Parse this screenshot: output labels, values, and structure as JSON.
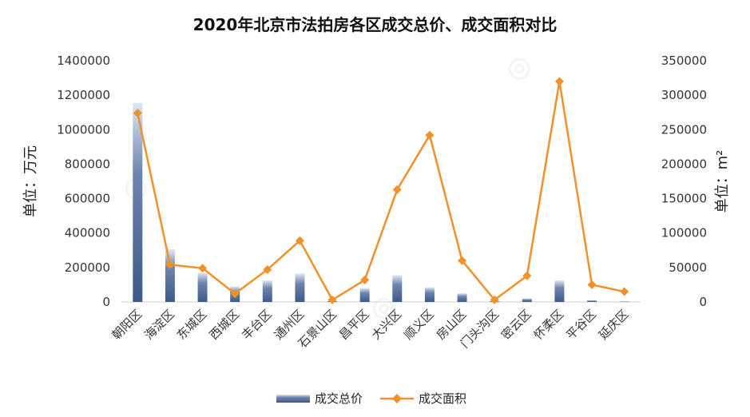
{
  "chart_data": {
    "type": "bar",
    "title": "2020年北京市法拍房各区成交总价、成交面积对比",
    "categories": [
      "朝阳区",
      "海淀区",
      "东城区",
      "西城区",
      "丰台区",
      "通州区",
      "石景山区",
      "昌平区",
      "大兴区",
      "顺义区",
      "房山区",
      "门头沟区",
      "密云区",
      "怀柔区",
      "平谷区",
      "延庆区"
    ],
    "ylabel_left": "单位：万元",
    "ylabel_right": "单位：m²",
    "ylim_left": [
      0,
      1400000
    ],
    "ylim_right": [
      0,
      350000
    ],
    "yticks_left": [
      "0",
      "200000",
      "400000",
      "600000",
      "800000",
      "1000000",
      "1200000",
      "1400000"
    ],
    "yticks_right": [
      "0",
      "50000",
      "100000",
      "150000",
      "200000",
      "250000",
      "300000",
      "350000"
    ],
    "grid": false,
    "legend_position": "bottom",
    "series": [
      {
        "name": "成交总价",
        "type": "bar",
        "axis": "left",
        "color": "#4a6491",
        "values": [
          1155000,
          305000,
          170000,
          90000,
          125000,
          165000,
          5000,
          80000,
          155000,
          85000,
          50000,
          5000,
          20000,
          125000,
          10000,
          3000
        ]
      },
      {
        "name": "成交面积",
        "type": "line",
        "axis": "right",
        "color": "#f0912a",
        "values": [
          274000,
          54000,
          49000,
          12000,
          47000,
          89000,
          3000,
          32000,
          163000,
          242000,
          60000,
          3000,
          38000,
          320000,
          25000,
          15000
        ]
      }
    ]
  }
}
